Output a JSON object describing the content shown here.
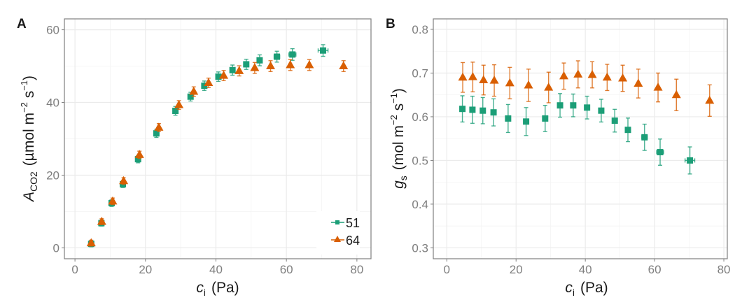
{
  "chart_data": [
    {
      "panel": "A",
      "type": "scatter",
      "title": "",
      "xlabel": "c_i (Pa)",
      "xlabel_main": "c",
      "xlabel_sub": "i",
      "xlabel_unit": "(Pa)",
      "ylabel": "A_CO2 (µmol m^-2 s^-1)",
      "ylabel_main": "A",
      "ylabel_sub": "CO2",
      "ylabel_unit_prefix": "(µmol  m",
      "ylabel_unit_exp1": "−2",
      "ylabel_unit_mid": " s",
      "ylabel_unit_exp2": "−1",
      "ylabel_unit_suffix": ")",
      "xlim": [
        -3,
        84
      ],
      "ylim": [
        -3,
        63
      ],
      "xticks": [
        0,
        20,
        40,
        60,
        80
      ],
      "yticks": [
        0,
        20,
        40,
        60
      ],
      "xtick_labels": [
        "0",
        "20",
        "40",
        "60",
        "80"
      ],
      "ytick_labels": [
        "0",
        "20",
        "40",
        "60"
      ],
      "grid": true,
      "legend": {
        "placement": "bottom-right",
        "entries": [
          "51",
          "64"
        ]
      },
      "series": [
        {
          "name": "51",
          "color": "#1b9e77",
          "marker": "square",
          "x": [
            4.6,
            7.5,
            10.4,
            13.6,
            17.9,
            23.1,
            28.5,
            32.8,
            36.7,
            40.7,
            44.7,
            48.6,
            52.4,
            57.3,
            61.7,
            70.4
          ],
          "y": [
            1.1,
            6.8,
            12.3,
            17.5,
            24.4,
            31.5,
            37.7,
            41.6,
            44.6,
            47.1,
            48.9,
            50.5,
            51.6,
            52.6,
            53.2,
            54.3
          ],
          "yerr": [
            0.8,
            0.8,
            0.9,
            0.9,
            1.0,
            1.1,
            1.2,
            1.2,
            1.3,
            1.3,
            1.4,
            1.4,
            1.5,
            1.5,
            1.6,
            1.6
          ],
          "xerr": [
            0,
            0,
            0,
            0,
            0,
            0,
            0,
            0,
            0,
            0,
            0,
            0,
            0,
            0.8,
            1.0,
            1.4
          ]
        },
        {
          "name": "64",
          "color": "#d95f02",
          "marker": "triangle",
          "x": [
            4.6,
            7.6,
            10.7,
            13.8,
            18.3,
            23.8,
            29.5,
            33.7,
            37.9,
            42.2,
            46.6,
            51.0,
            55.5,
            61.1,
            66.5,
            76.2
          ],
          "y": [
            1.3,
            7.2,
            12.8,
            18.4,
            25.6,
            33.1,
            39.3,
            43.0,
            45.4,
            47.4,
            48.7,
            49.5,
            50.0,
            50.3,
            50.3,
            50.0
          ],
          "yerr": [
            0.8,
            0.8,
            0.9,
            0.9,
            1.0,
            1.1,
            1.2,
            1.3,
            1.3,
            1.4,
            1.4,
            1.5,
            1.5,
            1.5,
            1.5,
            1.5
          ],
          "xerr": [
            0,
            0,
            0,
            0,
            0,
            0,
            0,
            0,
            0,
            0,
            0,
            0,
            0,
            0,
            0,
            0
          ]
        }
      ]
    },
    {
      "panel": "B",
      "type": "scatter",
      "title": "",
      "xlabel": "c_i (Pa)",
      "xlabel_main": "c",
      "xlabel_sub": "i",
      "xlabel_unit": "(Pa)",
      "ylabel": "g_s (mol m^-2 s^-1)",
      "ylabel_main": "g",
      "ylabel_sub": "s",
      "ylabel_unit_prefix": "(mol  m",
      "ylabel_unit_exp1": "−2",
      "ylabel_unit_mid": " s",
      "ylabel_unit_exp2": "−1",
      "ylabel_unit_suffix": ")",
      "xlim": [
        -3.9,
        81
      ],
      "ylim": [
        0.275,
        0.824
      ],
      "xticks": [
        0,
        20,
        40,
        60,
        80
      ],
      "yticks": [
        0.3,
        0.4,
        0.5,
        0.6,
        0.7,
        0.8
      ],
      "xtick_labels": [
        "0",
        "20",
        "40",
        "60",
        "80"
      ],
      "ytick_labels": [
        "0.3",
        "0.4",
        "0.5",
        "0.6",
        "0.7",
        "0.8"
      ],
      "grid": true,
      "legend": null,
      "series": [
        {
          "name": "51",
          "color": "#1b9e77",
          "marker": "square",
          "x": [
            4.5,
            7.4,
            10.4,
            13.5,
            17.7,
            22.9,
            28.4,
            32.7,
            36.5,
            40.5,
            44.6,
            48.5,
            52.3,
            57.1,
            61.6,
            70.2
          ],
          "y": [
            0.618,
            0.616,
            0.614,
            0.61,
            0.596,
            0.589,
            0.596,
            0.626,
            0.626,
            0.621,
            0.614,
            0.591,
            0.57,
            0.553,
            0.519,
            0.5
          ],
          "yerr": [
            0.03,
            0.031,
            0.03,
            0.031,
            0.032,
            0.032,
            0.03,
            0.027,
            0.026,
            0.026,
            0.026,
            0.026,
            0.027,
            0.03,
            0.03,
            0.031
          ],
          "xerr": [
            0,
            0,
            0,
            0,
            0,
            0,
            0,
            0,
            0,
            0,
            0,
            0,
            0,
            0.8,
            1.0,
            1.4
          ]
        },
        {
          "name": "64",
          "color": "#d95f02",
          "marker": "triangle",
          "x": [
            4.6,
            7.5,
            10.6,
            13.7,
            18.2,
            23.6,
            29.4,
            33.8,
            37.9,
            42.0,
            46.3,
            50.8,
            55.3,
            61.0,
            66.3,
            75.9
          ],
          "y": [
            0.69,
            0.691,
            0.684,
            0.683,
            0.677,
            0.672,
            0.667,
            0.693,
            0.697,
            0.696,
            0.69,
            0.688,
            0.676,
            0.667,
            0.65,
            0.637
          ],
          "yerr": [
            0.034,
            0.034,
            0.034,
            0.036,
            0.036,
            0.037,
            0.035,
            0.03,
            0.031,
            0.03,
            0.03,
            0.03,
            0.033,
            0.033,
            0.036,
            0.036
          ],
          "xerr": [
            0,
            0,
            0,
            0,
            0,
            0,
            0,
            0,
            0,
            0,
            0,
            0,
            0,
            0,
            0,
            0
          ]
        }
      ]
    }
  ]
}
